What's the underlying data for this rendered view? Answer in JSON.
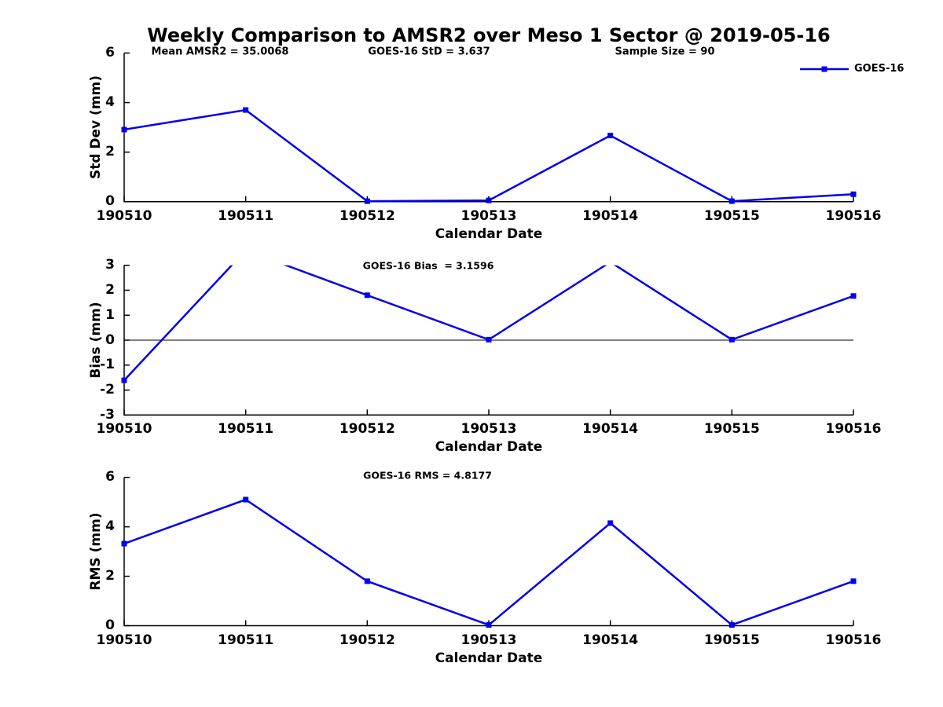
{
  "figure": {
    "title": "Weekly Comparison to AMSR2 over Meso 1 Sector @ 2019-05-16",
    "stats": {
      "mean_amsr2": "Mean AMSR2 = 35.0068",
      "goes16_std": "GOES-16 StD = 3.637",
      "sample_size": "Sample Size = 90"
    },
    "legend": {
      "label": "GOES-16",
      "color": "#0000EE",
      "marker": "square"
    },
    "axis_color": "#000000",
    "background": "#ffffff"
  },
  "chart_data": [
    {
      "type": "line",
      "subplot": "std-dev",
      "title": "",
      "xlabel": "Calendar Date",
      "ylabel": "Std Dev (mm)",
      "categories": [
        "190510",
        "190511",
        "190512",
        "190513",
        "190514",
        "190515",
        "190516"
      ],
      "series": [
        {
          "name": "GOES-16",
          "color": "#0000EE",
          "marker": "square",
          "values": [
            2.91,
            3.7,
            0.02,
            0.05,
            2.67,
            0.02,
            0.3
          ]
        }
      ],
      "ylim": [
        0,
        6
      ],
      "yticks": [
        0,
        2,
        4,
        6
      ],
      "grid": false,
      "zero_line": false,
      "annotation": "",
      "legend_position": "top-right"
    },
    {
      "type": "line",
      "subplot": "bias",
      "title": "",
      "xlabel": "Calendar Date",
      "ylabel": "Bias (mm)",
      "categories": [
        "190510",
        "190511",
        "190512",
        "190513",
        "190514",
        "190515",
        "190516"
      ],
      "series": [
        {
          "name": "GOES-16",
          "color": "#0000EE",
          "marker": "square",
          "values": [
            -1.61,
            3.6,
            1.8,
            0.02,
            3.13,
            0.02,
            1.77
          ]
        }
      ],
      "ylim": [
        -3,
        3
      ],
      "yticks": [
        -3,
        -2,
        -1,
        0,
        1,
        2,
        3
      ],
      "grid": false,
      "zero_line": true,
      "clip_note": "values above ymax are clipped at top of axes",
      "annotation": "GOES-16 Bias  = 3.1596",
      "legend_position": "none"
    },
    {
      "type": "line",
      "subplot": "rms",
      "title": "",
      "xlabel": "Calendar Date",
      "ylabel": "RMS (mm)",
      "categories": [
        "190510",
        "190511",
        "190512",
        "190513",
        "190514",
        "190515",
        "190516"
      ],
      "series": [
        {
          "name": "GOES-16",
          "color": "#0000EE",
          "marker": "square",
          "values": [
            3.32,
            5.1,
            1.8,
            0.03,
            4.15,
            0.03,
            1.8
          ]
        }
      ],
      "ylim": [
        0,
        6
      ],
      "yticks": [
        0,
        2,
        4,
        6
      ],
      "grid": false,
      "zero_line": false,
      "annotation": "GOES-16 RMS = 4.8177",
      "legend_position": "none"
    }
  ]
}
